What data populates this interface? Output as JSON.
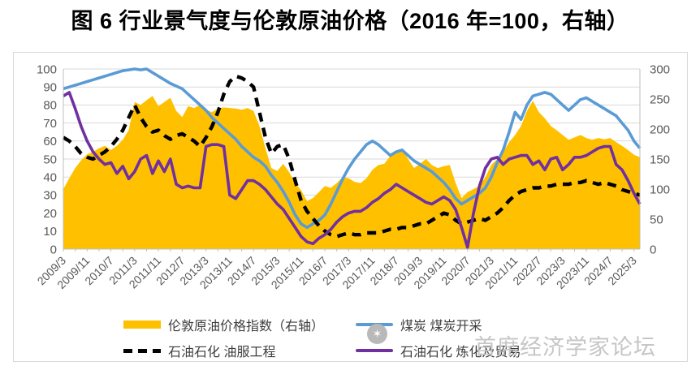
{
  "title": "图 6 行业景气度与伦敦原油价格（2016 年=100，右轴）",
  "legend": {
    "items": [
      {
        "label": "伦敦原油价格指数（右轴）",
        "type": "area",
        "color": "#FFC000"
      },
      {
        "label": "煤炭 煤炭开采",
        "type": "line",
        "color": "#5B9BD5"
      },
      {
        "label": "石油石化 油服工程",
        "type": "dashed",
        "color": "#000000"
      },
      {
        "label": "石油石化 炼化及贸易",
        "type": "line",
        "color": "#7030A0"
      }
    ]
  },
  "watermark": {
    "text": "首席经济学家论坛",
    "logo_glyph": "✶"
  },
  "colors": {
    "oil_area": "#FFC000",
    "coal_line": "#5B9BD5",
    "oil_service_line": "#000000",
    "refining_line": "#7030A0",
    "axis_text": "#595959",
    "gridline": "#d9d9d9",
    "axis_line": "#bfbfbf",
    "watermark": "#c6c6c6"
  },
  "chart_data": {
    "type": "combo-area-line",
    "title": "图 6 行业景气度与伦敦原油价格（2016 年=100，右轴）",
    "x_start": "2009/3",
    "x_end": "2025/5",
    "x_step_months": 2,
    "x_tick_labels": [
      "2009/3",
      "2009/11",
      "2010/7",
      "2011/3",
      "2011/11",
      "2012/7",
      "2013/3",
      "2013/11",
      "2014/7",
      "2015/3",
      "2015/11",
      "2016/7",
      "2017/3",
      "2017/11",
      "2018/7",
      "2019/3",
      "2019/11",
      "2020/7",
      "2021/3",
      "2021/11",
      "2022/7",
      "2023/3",
      "2023/11",
      "2024/7",
      "2025/3"
    ],
    "left_axis": {
      "min": 0,
      "max": 100,
      "step": 10,
      "ticks": [
        0,
        10,
        20,
        30,
        40,
        50,
        60,
        70,
        80,
        90,
        100
      ]
    },
    "right_axis": {
      "min": 0,
      "max": 300,
      "step": 50,
      "ticks": [
        0,
        50,
        100,
        150,
        200,
        250,
        300
      ],
      "note": "2016年=100"
    },
    "grid": true,
    "legend_position": "bottom",
    "series": [
      {
        "name": "伦敦原油价格指数（右轴）",
        "axis": "right",
        "style": "area",
        "color": "#FFC000",
        "values": [
          100,
          118,
          135,
          148,
          158,
          162,
          168,
          172,
          165,
          172,
          182,
          198,
          245,
          240,
          248,
          255,
          238,
          245,
          252,
          230,
          220,
          238,
          235,
          240,
          232,
          228,
          234,
          236,
          235,
          234,
          232,
          235,
          230,
          205,
          168,
          135,
          130,
          142,
          128,
          110,
          98,
          80,
          85,
          95,
          105,
          102,
          110,
          120,
          118,
          112,
          110,
          118,
          132,
          140,
          142,
          155,
          160,
          168,
          150,
          135,
          142,
          150,
          140,
          135,
          138,
          140,
          110,
          85,
          95,
          100,
          105,
          120,
          140,
          150,
          162,
          178,
          190,
          205,
          230,
          247,
          228,
          218,
          205,
          198,
          190,
          182,
          186,
          190,
          185,
          182,
          185,
          183,
          185,
          178,
          172,
          165,
          157,
          153
        ]
      },
      {
        "name": "煤炭 煤炭开采",
        "axis": "left",
        "style": "line",
        "color": "#5B9BD5",
        "values": [
          89,
          90,
          91,
          92,
          93,
          94,
          95,
          96,
          97,
          98,
          99,
          99.5,
          100,
          99.5,
          100,
          98,
          96,
          94,
          92,
          90.5,
          89,
          86,
          83,
          80,
          77,
          73,
          70,
          67,
          64,
          61,
          57,
          54,
          51,
          49,
          46,
          41,
          37,
          32,
          26,
          19,
          14,
          12,
          14,
          16,
          19,
          25,
          32,
          39,
          45,
          50,
          54,
          58,
          60,
          58,
          55,
          52,
          54,
          55,
          52,
          49,
          47,
          45,
          43,
          40,
          37,
          33,
          28,
          25,
          27,
          29,
          31,
          34,
          40,
          48,
          55,
          65,
          76,
          72,
          80,
          85,
          86,
          87,
          86,
          83,
          80,
          77,
          80,
          83,
          84,
          82,
          80,
          78,
          76,
          74,
          70,
          66,
          60,
          56
        ]
      },
      {
        "name": "石油石化 油服工程",
        "axis": "left",
        "style": "dashed",
        "color": "#000000",
        "values": [
          62,
          60,
          57,
          53,
          51,
          50,
          52,
          54,
          57,
          61,
          66,
          73,
          80,
          73,
          68,
          65,
          66,
          63,
          61,
          63,
          64,
          62,
          60,
          57,
          62,
          68,
          76,
          86,
          93,
          96,
          95,
          93,
          90,
          76,
          62,
          53,
          57,
          58,
          50,
          38,
          27,
          21,
          17,
          13,
          10,
          8,
          7,
          8,
          9,
          8,
          8,
          9,
          9,
          9,
          10,
          11,
          11,
          12,
          12,
          13,
          14,
          14,
          16,
          18,
          20,
          19,
          16,
          14,
          15,
          16,
          17,
          16,
          18,
          20,
          23,
          27,
          30,
          32,
          33,
          34,
          34,
          35,
          35,
          36,
          36,
          36,
          37,
          37,
          38,
          37,
          36,
          37,
          36,
          35,
          33,
          32,
          31,
          30
        ]
      },
      {
        "name": "石油石化 炼化及贸易",
        "axis": "left",
        "style": "line",
        "color": "#7030A0",
        "values": [
          85,
          87,
          78,
          68,
          60,
          54,
          50,
          47,
          48,
          42,
          46,
          39,
          43,
          50,
          52,
          42,
          49,
          43,
          50,
          36,
          34,
          35,
          34,
          34,
          57,
          58,
          58,
          57,
          30,
          28,
          33,
          38,
          38,
          36,
          33,
          29,
          25,
          22,
          17,
          12,
          7,
          4,
          3,
          6,
          8,
          11,
          15,
          18,
          20,
          21,
          21,
          23,
          26,
          28,
          31,
          33,
          36,
          34,
          32,
          30,
          28,
          26,
          25,
          27,
          29,
          27,
          22,
          12,
          1,
          20,
          35,
          45,
          50,
          51,
          47,
          50,
          51,
          52,
          52,
          47,
          49,
          44,
          50,
          51,
          44,
          47,
          51,
          51,
          52,
          54,
          56,
          57,
          57,
          47,
          44,
          38,
          31,
          25
        ]
      }
    ]
  }
}
